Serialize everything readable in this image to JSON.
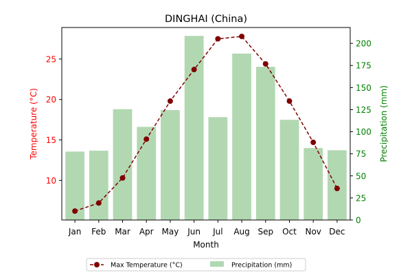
{
  "chart_data": {
    "type": "bar+line",
    "title": "DINGHAI (China)",
    "xlabel": "Month",
    "ylabel_left": "Temperature (°C)",
    "ylabel_right": "Precipitation (mm)",
    "categories": [
      "Jan",
      "Feb",
      "Mar",
      "Apr",
      "May",
      "Jun",
      "Jul",
      "Aug",
      "Sep",
      "Oct",
      "Nov",
      "Dec"
    ],
    "ylim_left": [
      5.1,
      28.9
    ],
    "ylim_right": [
      0,
      218
    ],
    "yticks_left": [
      10,
      15,
      20,
      25
    ],
    "yticks_right": [
      0,
      25,
      50,
      75,
      100,
      125,
      150,
      175,
      200
    ],
    "series": [
      {
        "name": "Max Temperature (°C)",
        "type": "line",
        "axis": "left",
        "values": [
          6.2,
          7.2,
          10.3,
          15.1,
          19.8,
          23.7,
          27.5,
          27.8,
          24.4,
          19.8,
          14.7,
          9.0
        ]
      },
      {
        "name": "Precipitation (mm)",
        "type": "bar",
        "axis": "right",
        "values": [
          77.5,
          78.5,
          125.5,
          105.5,
          124.5,
          208.5,
          116.5,
          188.5,
          173.5,
          113.5,
          81.5,
          79.0
        ]
      }
    ],
    "grid": false,
    "legend": "bottom-center",
    "colors": {
      "line": "#800000",
      "bar": "#b2d8b2",
      "left_axis": "#ff0000",
      "right_axis": "#008000",
      "frame": "#000000"
    }
  }
}
